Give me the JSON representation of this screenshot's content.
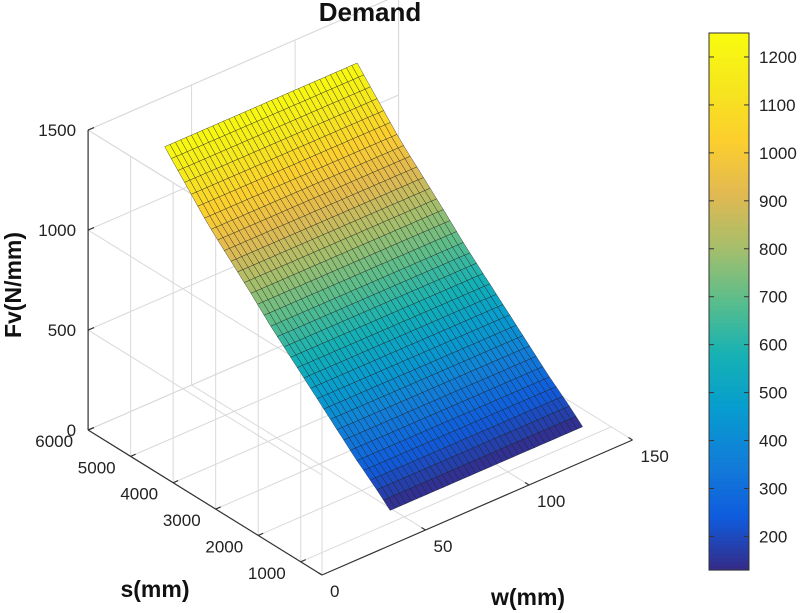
{
  "chart_data": {
    "type": "surface",
    "title": "Demand",
    "xlabel": "w(mm)",
    "ylabel": "s(mm)",
    "zlabel": "Fv(N/mm)",
    "x_ticks": [
      "0",
      "50",
      "100",
      "150"
    ],
    "y_ticks": [
      "1000",
      "2000",
      "3000",
      "4000",
      "5000",
      "6000"
    ],
    "z_ticks": [
      "0",
      "500",
      "1000",
      "1500"
    ],
    "xlim": [
      0,
      150
    ],
    "ylim": [
      500,
      6000
    ],
    "zlim": [
      0,
      1500
    ],
    "w_range": [
      37,
      130
    ],
    "s_range": [
      700,
      6000
    ],
    "surface_values": [
      {
        "s": 700,
        "Fv": 130
      },
      {
        "s": 1000,
        "Fv": 190
      },
      {
        "s": 1500,
        "Fv": 280
      },
      {
        "s": 2000,
        "Fv": 380
      },
      {
        "s": 2500,
        "Fv": 480
      },
      {
        "s": 3000,
        "Fv": 580
      },
      {
        "s": 3500,
        "Fv": 680
      },
      {
        "s": 4000,
        "Fv": 790
      },
      {
        "s": 5000,
        "Fv": 1000
      },
      {
        "s": 6000,
        "Fv": 1250
      }
    ],
    "colorbar": {
      "ticks": [
        "200",
        "300",
        "400",
        "500",
        "600",
        "700",
        "800",
        "900",
        "1000",
        "1100",
        "1200"
      ],
      "range": [
        130,
        1250
      ],
      "colormap": "parula"
    },
    "grid": true
  }
}
